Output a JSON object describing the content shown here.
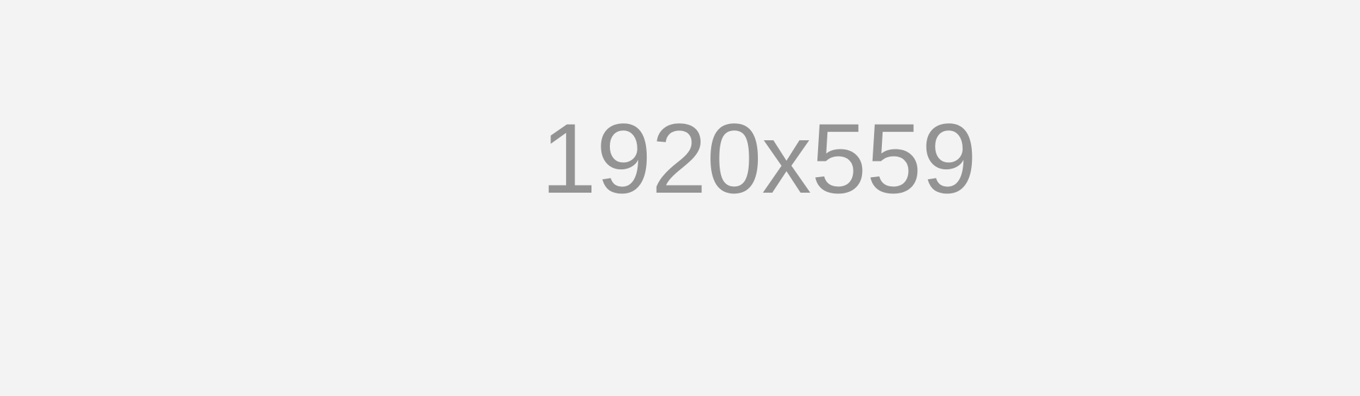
{
  "placeholder": {
    "label": "1920x559",
    "background_color": "#f3f3f3",
    "text_color": "#939393"
  }
}
